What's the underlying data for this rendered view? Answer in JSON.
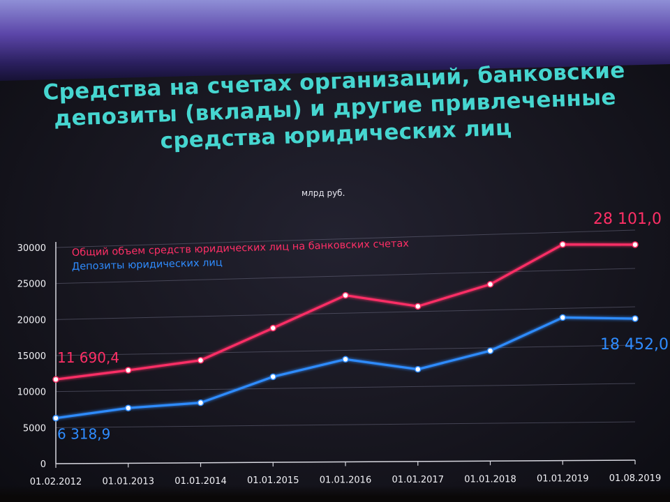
{
  "title_lines": [
    "Средства на счетах организаций, банковские",
    "депозиты (вклады) и другие привлеченные",
    "средства юридических лиц"
  ],
  "unit": "млрд руб.",
  "colors": {
    "total": "#ff2f66",
    "deposits": "#2f8cff",
    "title": "#46d6d0",
    "grid": "#6a6a80"
  },
  "chart_data": {
    "type": "line",
    "title": "",
    "xlabel": "",
    "ylabel": "",
    "ylim": [
      0,
      30000
    ],
    "yticks": [
      "0",
      "5000",
      "10000",
      "15000",
      "20000",
      "25000",
      "30000"
    ],
    "ytick_values": [
      0,
      5000,
      10000,
      15000,
      20000,
      25000,
      30000
    ],
    "categories": [
      "01.02.2012",
      "01.01.2013",
      "01.01.2014",
      "01.01.2015",
      "01.01.2016",
      "01.01.2017",
      "01.01.2018",
      "01.01.2019",
      "01.08.2019"
    ],
    "legend_position": "top-left",
    "grid": true,
    "series": [
      {
        "name": "Общий объем средств юридических лиц на банковских счетах",
        "color": "#ff2f66",
        "values": [
          11690.4,
          12800,
          14000,
          18200,
          22400,
          20700,
          23400,
          28400,
          28101.0
        ],
        "start_label": "11 690,4",
        "end_label": "28 101,0"
      },
      {
        "name": "Депозиты юридических лиц",
        "color": "#2f8cff",
        "values": [
          6318.9,
          7600,
          8200,
          11600,
          13800,
          12300,
          14600,
          18800,
          18452.0
        ],
        "start_label": "6 318,9",
        "end_label": "18 452,0"
      }
    ]
  }
}
